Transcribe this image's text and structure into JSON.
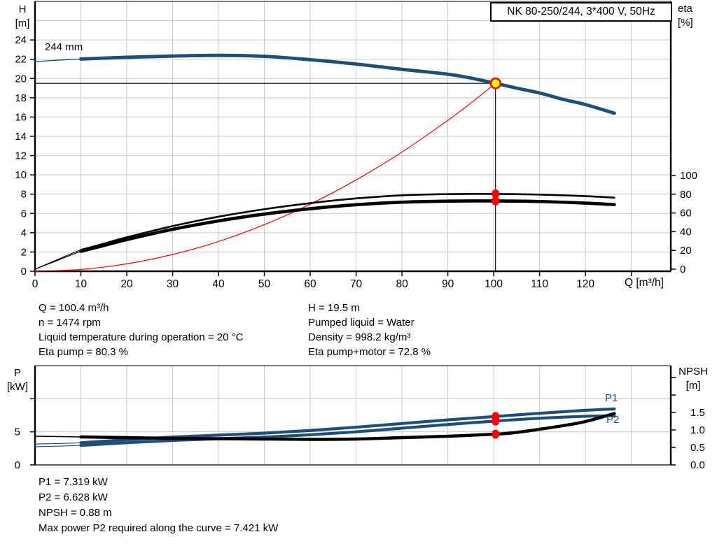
{
  "title_box": {
    "label": "NK 80-250/244, 3*400 V, 50Hz"
  },
  "colors": {
    "curve_blue": "#1f4e79",
    "curve_black": "#000000",
    "system_red": "#ff0000",
    "duty_yellow": "#ffff00",
    "grid": "#c8c8c8",
    "axis": "#000000"
  },
  "axis_titles": {
    "h": [
      "H",
      "[m]"
    ],
    "eta": [
      "eta",
      "[%]"
    ],
    "q": "Q [m³/h]",
    "p": [
      "P",
      "[kW]"
    ],
    "npsh": [
      "NPSH",
      "[m]"
    ]
  },
  "curve_labels": {
    "impeller": "244 mm",
    "p1": "P1",
    "p2": "P2"
  },
  "info_block": {
    "left": [
      "Q = 100.4 m³/h",
      "n = 1474 rpm",
      "Liquid temperature during operation = 20 °C",
      "Eta pump = 80.3 %"
    ],
    "right": [
      "H = 19.5 m",
      "Pumped liquid = Water",
      "Density = 998.2 kg/m³",
      "Eta pump+motor = 72.8 %"
    ]
  },
  "result_block": {
    "lines": [
      "P1 = 7.319 kW",
      "P2 = 6.628 kW",
      "NPSH = 0.88 m",
      "Max power P2 required along the curve = 7.421 kW"
    ]
  },
  "chart_data": [
    {
      "type": "line",
      "id": "qh-eta-chart",
      "title": "NK 80-250/244, 3*400 V, 50Hz",
      "xlabel": "Q [m³/h]",
      "ylabel_left": "H [m]",
      "ylabel_right": "eta [%]",
      "xlim": [
        0,
        138.6
      ],
      "ylim_left": [
        0,
        28
      ],
      "x": {
        "ticks": [
          {
            "v": 0,
            "label": "0"
          },
          {
            "v": 10,
            "label": "10"
          },
          {
            "v": 20,
            "label": "20"
          },
          {
            "v": 30,
            "label": "30"
          },
          {
            "v": 40,
            "label": "40"
          },
          {
            "v": 50,
            "label": "50"
          },
          {
            "v": 60,
            "label": "60"
          },
          {
            "v": 70,
            "label": "70"
          },
          {
            "v": 80,
            "label": "80"
          },
          {
            "v": 90,
            "label": "90"
          },
          {
            "v": 100,
            "label": "100"
          },
          {
            "v": 110,
            "label": "110"
          },
          {
            "v": 120,
            "label": "120"
          },
          {
            "v": 130,
            "label": ""
          }
        ],
        "grid": [
          10,
          20,
          30,
          40,
          50,
          60,
          70,
          80,
          90,
          100,
          110,
          120,
          130
        ]
      },
      "left": {
        "ticks": [
          {
            "v": 0,
            "label": "0"
          },
          {
            "v": 2,
            "label": "2"
          },
          {
            "v": 4,
            "label": "4"
          },
          {
            "v": 6,
            "label": "6"
          },
          {
            "v": 8,
            "label": "8"
          },
          {
            "v": 10,
            "label": "10"
          },
          {
            "v": 12,
            "label": "12"
          },
          {
            "v": 14,
            "label": "14"
          },
          {
            "v": 16,
            "label": "16"
          },
          {
            "v": 18,
            "label": "18"
          },
          {
            "v": 20,
            "label": "20"
          },
          {
            "v": 22,
            "label": "22"
          },
          {
            "v": 24,
            "label": "24"
          }
        ],
        "grid": [
          2,
          4,
          6,
          8,
          10,
          12,
          14,
          16,
          18,
          20,
          22,
          24,
          26
        ]
      },
      "right": {
        "ticks": [
          {
            "v": 0,
            "label": "0"
          },
          {
            "v": 20,
            "label": "20"
          },
          {
            "v": 40,
            "label": "40"
          },
          {
            "v": 60,
            "label": "60"
          },
          {
            "v": 80,
            "label": "80"
          },
          {
            "v": 100,
            "label": "100"
          }
        ]
      },
      "series": [
        {
          "id": "system-curve",
          "axis": "left",
          "color": "#ff0000",
          "width": 1.2,
          "thin": 0,
          "full_only": true,
          "points": [
            [
              0,
              0
            ],
            [
              10,
              0.19
            ],
            [
              20,
              0.77
            ],
            [
              30,
              1.74
            ],
            [
              40,
              3.09
            ],
            [
              50,
              4.84
            ],
            [
              60,
              6.96
            ],
            [
              70,
              9.48
            ],
            [
              80,
              12.37
            ],
            [
              90,
              15.66
            ],
            [
              95,
              17.45
            ],
            [
              100.4,
              19.5
            ]
          ]
        },
        {
          "id": "eta-pump-motor-curve",
          "axis": "right",
          "color": "#000000",
          "width": 4.6,
          "thin": 1.2,
          "points": [
            [
              0,
              0
            ],
            [
              5,
              9.5
            ],
            [
              10,
              19
            ],
            [
              15,
              25.2
            ],
            [
              20,
              31.5
            ],
            [
              30,
              42.5
            ],
            [
              40,
              51.5
            ],
            [
              50,
              58.8
            ],
            [
              60,
              64.5
            ],
            [
              70,
              68.8
            ],
            [
              80,
              71.5
            ],
            [
              90,
              72.6
            ],
            [
              100.4,
              72.8
            ],
            [
              110,
              72.2
            ],
            [
              120,
              70.5
            ],
            [
              126.3,
              68.9
            ]
          ]
        },
        {
          "id": "eta-pump-curve",
          "axis": "right",
          "color": "#000000",
          "width": 2.6,
          "thin": 1.1,
          "points": [
            [
              0,
              0
            ],
            [
              5,
              10.5
            ],
            [
              10,
              20.5
            ],
            [
              15,
              27.2
            ],
            [
              20,
              34
            ],
            [
              30,
              46
            ],
            [
              40,
              56
            ],
            [
              50,
              64
            ],
            [
              60,
              70.5
            ],
            [
              70,
              75.5
            ],
            [
              80,
              78.8
            ],
            [
              90,
              80.1
            ],
            [
              100.4,
              80.3
            ],
            [
              110,
              79.6
            ],
            [
              120,
              77.9
            ],
            [
              126.3,
              76.3
            ]
          ]
        },
        {
          "id": "head-curve-244mm",
          "axis": "left",
          "color": "#1f4e79",
          "width": 4.8,
          "thin": 1.4,
          "points": [
            [
              0,
              21.75
            ],
            [
              5,
              21.9
            ],
            [
              10,
              22.02
            ],
            [
              20,
              22.2
            ],
            [
              30,
              22.33
            ],
            [
              40,
              22.4
            ],
            [
              50,
              22.3
            ],
            [
              60,
              21.95
            ],
            [
              70,
              21.5
            ],
            [
              80,
              20.95
            ],
            [
              90,
              20.45
            ],
            [
              95,
              20.05
            ],
            [
              100.4,
              19.5
            ],
            [
              105,
              19.0
            ],
            [
              110,
              18.5
            ],
            [
              115,
              17.85
            ],
            [
              120,
              17.3
            ],
            [
              126.3,
              16.4
            ]
          ]
        }
      ],
      "guides": [
        {
          "type": "h",
          "v": 19.5,
          "from": 0,
          "to": 100.4
        },
        {
          "type": "v",
          "x": 100.4,
          "to": 19.5
        }
      ],
      "markers": [
        {
          "id": "eta-pump-motor-point",
          "x": 100.4,
          "v": 72.8,
          "axis": "right",
          "style": "dot"
        },
        {
          "id": "eta-pump-point",
          "x": 100.4,
          "v": 80.3,
          "axis": "right",
          "style": "dot"
        },
        {
          "id": "duty-point",
          "x": 100.4,
          "v": 19.5,
          "axis": "left",
          "style": "op"
        }
      ],
      "duty_point": {
        "q": 100.4,
        "h": 19.5,
        "eta_pump": 80.3,
        "eta_pump_motor": 72.8
      }
    },
    {
      "type": "line",
      "id": "power-npsh-chart",
      "xlabel": "",
      "ylabel_left": "P [kW]",
      "ylabel_right": "NPSH [m]",
      "xlim": [
        0,
        138.6
      ],
      "ylim_left": [
        0,
        15
      ],
      "x": {
        "ticks": [],
        "grid": [
          10,
          20,
          30,
          40,
          50,
          60,
          70,
          80,
          90,
          100,
          110,
          120,
          130
        ]
      },
      "left": {
        "ticks": [
          {
            "v": 0,
            "label": "0"
          },
          {
            "v": 5,
            "label": "5"
          },
          {
            "v": 10,
            "label": ""
          }
        ],
        "grid": [
          5,
          10
        ]
      },
      "right": {
        "ticks": [
          {
            "v": 0,
            "label": "0.0"
          },
          {
            "v": 0.5,
            "label": "0.5"
          },
          {
            "v": 1,
            "label": "1.0"
          },
          {
            "v": 1.5,
            "label": "1.5"
          },
          {
            "v": 2,
            "label": ""
          },
          {
            "v": 2.5,
            "label": ""
          }
        ]
      },
      "series": [
        {
          "id": "p2-curve",
          "axis": "left",
          "color": "#1f4e79",
          "width": 4.2,
          "thin": 1.2,
          "points": [
            [
              0,
              2.75
            ],
            [
              10,
              2.95
            ],
            [
              20,
              3.35
            ],
            [
              30,
              3.7
            ],
            [
              40,
              3.95
            ],
            [
              50,
              4.2
            ],
            [
              60,
              4.55
            ],
            [
              70,
              5.0
            ],
            [
              80,
              5.55
            ],
            [
              90,
              6.1
            ],
            [
              100.4,
              6.628
            ],
            [
              110,
              7.05
            ],
            [
              120,
              7.35
            ],
            [
              126.3,
              7.421
            ]
          ]
        },
        {
          "id": "p1-curve",
          "axis": "left",
          "color": "#1f4e79",
          "width": 4.2,
          "thin": 1.2,
          "points": [
            [
              0,
              3.15
            ],
            [
              10,
              3.35
            ],
            [
              20,
              3.8
            ],
            [
              30,
              4.2
            ],
            [
              40,
              4.5
            ],
            [
              50,
              4.8
            ],
            [
              60,
              5.2
            ],
            [
              70,
              5.7
            ],
            [
              80,
              6.25
            ],
            [
              90,
              6.8
            ],
            [
              100.4,
              7.319
            ],
            [
              110,
              7.8
            ],
            [
              120,
              8.25
            ],
            [
              126.3,
              8.45
            ]
          ]
        },
        {
          "id": "npsh-curve",
          "axis": "right",
          "color": "#000000",
          "width": 4.4,
          "thin": 1.6,
          "points": [
            [
              0,
              0.82
            ],
            [
              10,
              0.8
            ],
            [
              20,
              0.78
            ],
            [
              30,
              0.76
            ],
            [
              40,
              0.75
            ],
            [
              50,
              0.74
            ],
            [
              60,
              0.73
            ],
            [
              70,
              0.74
            ],
            [
              80,
              0.78
            ],
            [
              90,
              0.82
            ],
            [
              100.4,
              0.88
            ],
            [
              105,
              0.93
            ],
            [
              110,
              1.02
            ],
            [
              115,
              1.12
            ],
            [
              120,
              1.24
            ],
            [
              126.3,
              1.47
            ]
          ]
        }
      ],
      "guides": [],
      "markers": [
        {
          "id": "p1-point",
          "x": 100.4,
          "v": 7.319,
          "axis": "left",
          "style": "dot"
        },
        {
          "id": "p2-point",
          "x": 100.4,
          "v": 6.628,
          "axis": "left",
          "style": "dot"
        },
        {
          "id": "npsh-point",
          "x": 100.4,
          "v": 0.88,
          "axis": "right",
          "style": "dot"
        }
      ],
      "duty_point": {
        "q": 100.4,
        "p1": 7.319,
        "p2": 6.628,
        "npsh": 0.88,
        "p2_max": 7.421
      }
    }
  ]
}
